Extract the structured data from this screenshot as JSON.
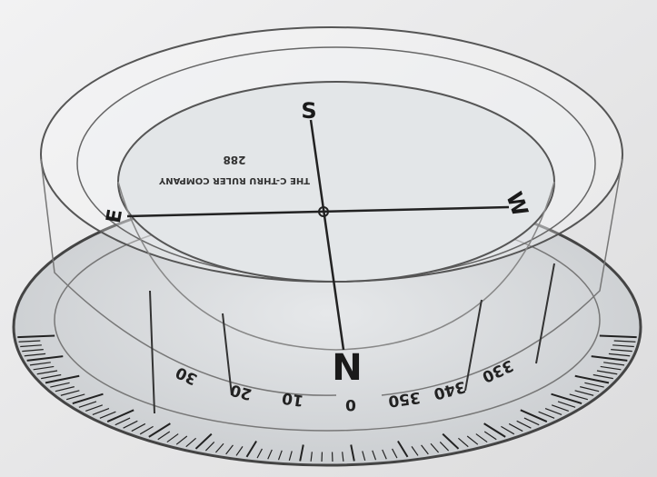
{
  "compass": {
    "cardinals": {
      "north": "N",
      "south": "S",
      "east": "E",
      "west": "W"
    },
    "maker": {
      "name": "THE C-THRU RULER COMPANY",
      "model": "288"
    },
    "scale_labels": [
      "30",
      "20",
      "10",
      "0",
      "350",
      "340",
      "330"
    ]
  }
}
